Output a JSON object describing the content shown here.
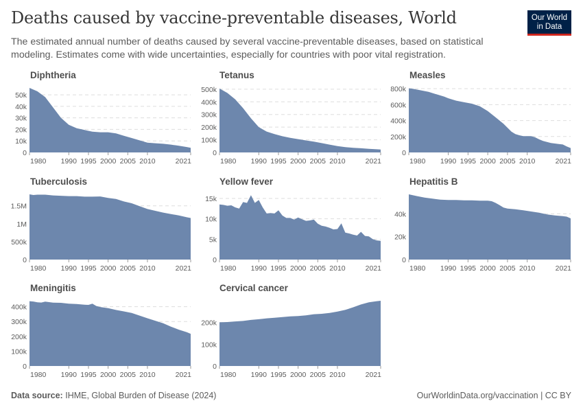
{
  "header": {
    "title": "Deaths caused by vaccine-preventable diseases, World",
    "subtitle": "The estimated annual number of deaths caused by several vaccine-preventable diseases, based on statistical modeling. Estimates come with wide uncertainties, especially for countries with poor vital registration.",
    "logo_line1": "Our World",
    "logo_line2": "in Data"
  },
  "footer": {
    "source_label": "Data source:",
    "source_text": "IHME, Global Burden of Disease (2024)",
    "url_text": "OurWorldinData.org/vaccination | CC BY"
  },
  "colors": {
    "area": "#6d87ad",
    "logo_bg": "#002147",
    "logo_accent": "#ce261e"
  },
  "chart_data": [
    {
      "type": "area",
      "title": "Diphtheria",
      "x_ticks": [
        1980,
        1990,
        1995,
        2000,
        2005,
        2010,
        2021
      ],
      "y_ticks": [
        0,
        10000,
        20000,
        30000,
        40000,
        50000
      ],
      "y_tick_labels": [
        "0",
        "10k",
        "20k",
        "30k",
        "40k",
        "50k"
      ],
      "xlim": [
        1980,
        2021
      ],
      "ylim": [
        0,
        56000
      ],
      "x": [
        1980,
        1982,
        1984,
        1986,
        1988,
        1990,
        1992,
        1994,
        1996,
        1998,
        2000,
        2002,
        2004,
        2006,
        2008,
        2010,
        2012,
        2014,
        2016,
        2018,
        2020,
        2021
      ],
      "values": [
        56000,
        53000,
        48000,
        39000,
        30000,
        24000,
        21000,
        19500,
        18000,
        17500,
        17500,
        16500,
        14500,
        12500,
        10500,
        8500,
        8000,
        7500,
        6800,
        5800,
        4700,
        4000
      ]
    },
    {
      "type": "area",
      "title": "Tetanus",
      "x_ticks": [
        1980,
        1990,
        1995,
        2000,
        2005,
        2010,
        2021
      ],
      "y_ticks": [
        0,
        100000,
        200000,
        300000,
        400000,
        500000
      ],
      "y_tick_labels": [
        "0",
        "100k",
        "200k",
        "300k",
        "400k",
        "500k"
      ],
      "xlim": [
        1980,
        2021
      ],
      "ylim": [
        0,
        510000
      ],
      "x": [
        1980,
        1982,
        1984,
        1986,
        1988,
        1990,
        1992,
        1994,
        1996,
        1998,
        2000,
        2002,
        2004,
        2006,
        2008,
        2010,
        2012,
        2014,
        2016,
        2018,
        2020,
        2021
      ],
      "values": [
        505000,
        470000,
        420000,
        350000,
        270000,
        200000,
        165000,
        145000,
        128000,
        115000,
        105000,
        95000,
        85000,
        74000,
        62000,
        50000,
        42000,
        37000,
        33000,
        29000,
        25000,
        23000
      ]
    },
    {
      "type": "area",
      "title": "Measles",
      "x_ticks": [
        1980,
        1990,
        1995,
        2000,
        2005,
        2010,
        2021
      ],
      "y_ticks": [
        0,
        200000,
        400000,
        600000,
        800000
      ],
      "y_tick_labels": [
        "0",
        "200k",
        "400k",
        "600k",
        "800k"
      ],
      "xlim": [
        1980,
        2021
      ],
      "ylim": [
        0,
        810000
      ],
      "x": [
        1980,
        1981,
        1983,
        1985,
        1987,
        1989,
        1990,
        1992,
        1994,
        1996,
        1998,
        2000,
        2002,
        2004,
        2005,
        2006,
        2007,
        2008,
        2009,
        2010,
        2011,
        2012,
        2013,
        2014,
        2016,
        2018,
        2019,
        2020,
        2021
      ],
      "values": [
        805000,
        800000,
        780000,
        760000,
        730000,
        700000,
        680000,
        650000,
        630000,
        612000,
        580000,
        520000,
        440000,
        360000,
        310000,
        260000,
        230000,
        215000,
        205000,
        205000,
        205000,
        190000,
        165000,
        145000,
        118000,
        105000,
        100000,
        75000,
        55000
      ]
    },
    {
      "type": "area",
      "title": "Tuberculosis",
      "x_ticks": [
        1980,
        1990,
        1995,
        2000,
        2005,
        2010,
        2021
      ],
      "y_ticks": [
        0,
        500000,
        1000000,
        1500000
      ],
      "y_tick_labels": [
        "0",
        "500k",
        "1M",
        "1.5M"
      ],
      "xlim": [
        1980,
        2021
      ],
      "ylim": [
        0,
        1820000
      ],
      "x": [
        1980,
        1981,
        1982,
        1984,
        1986,
        1988,
        1990,
        1992,
        1994,
        1996,
        1998,
        2000,
        2002,
        2004,
        2006,
        2008,
        2010,
        2012,
        2014,
        2016,
        2018,
        2020,
        2021
      ],
      "values": [
        1820000,
        1800000,
        1810000,
        1810000,
        1790000,
        1780000,
        1770000,
        1770000,
        1755000,
        1755000,
        1760000,
        1720000,
        1690000,
        1620000,
        1570000,
        1490000,
        1410000,
        1360000,
        1310000,
        1270000,
        1230000,
        1180000,
        1160000
      ]
    },
    {
      "type": "area",
      "title": "Yellow fever",
      "x_ticks": [
        1980,
        1990,
        1995,
        2000,
        2005,
        2010,
        2021
      ],
      "y_ticks": [
        0,
        5000,
        10000,
        15000
      ],
      "y_tick_labels": [
        "0",
        "5k",
        "10k",
        "15k"
      ],
      "xlim": [
        1980,
        2021
      ],
      "ylim": [
        0,
        16000
      ],
      "x": [
        1980,
        1981,
        1982,
        1983,
        1984,
        1985,
        1986,
        1987,
        1988,
        1989,
        1990,
        1991,
        1992,
        1993,
        1994,
        1995,
        1996,
        1997,
        1998,
        1999,
        2000,
        2001,
        2002,
        2003,
        2004,
        2005,
        2006,
        2007,
        2008,
        2009,
        2010,
        2011,
        2012,
        2013,
        2014,
        2015,
        2016,
        2017,
        2018,
        2019,
        2020,
        2021
      ],
      "values": [
        13500,
        13400,
        13200,
        13300,
        12800,
        12500,
        14100,
        13900,
        15800,
        13900,
        14600,
        12800,
        11300,
        11400,
        11300,
        12100,
        10800,
        10200,
        10200,
        9800,
        10300,
        9900,
        9500,
        9600,
        9800,
        8800,
        8300,
        8100,
        7800,
        7400,
        7500,
        8900,
        6600,
        6400,
        6100,
        5900,
        6800,
        5800,
        5700,
        5000,
        4700,
        4600
      ]
    },
    {
      "type": "area",
      "title": "Hepatitis B",
      "x_ticks": [
        1980,
        1990,
        1995,
        2000,
        2005,
        2010,
        2021
      ],
      "y_ticks": [
        0,
        20000,
        40000
      ],
      "y_tick_labels": [
        "0",
        "20k",
        "40k"
      ],
      "xlim": [
        1980,
        2021
      ],
      "ylim": [
        0,
        57000
      ],
      "x": [
        1980,
        1982,
        1984,
        1986,
        1988,
        1990,
        1992,
        1994,
        1996,
        1998,
        2000,
        2001,
        2002,
        2003,
        2004,
        2005,
        2007,
        2009,
        2011,
        2013,
        2015,
        2017,
        2019,
        2020,
        2021
      ],
      "values": [
        57000,
        55500,
        54200,
        53200,
        52300,
        52000,
        52000,
        51800,
        51700,
        51500,
        51500,
        51000,
        49500,
        47500,
        45500,
        44500,
        44000,
        43000,
        42000,
        41000,
        39500,
        38500,
        38000,
        37500,
        36000
      ]
    },
    {
      "type": "area",
      "title": "Meningitis",
      "x_ticks": [
        1980,
        1990,
        1995,
        2000,
        2005,
        2010,
        2021
      ],
      "y_ticks": [
        0,
        100000,
        200000,
        300000,
        400000
      ],
      "y_tick_labels": [
        "0",
        "100k",
        "200k",
        "300k",
        "400k"
      ],
      "xlim": [
        1980,
        2021
      ],
      "ylim": [
        0,
        440000
      ],
      "x": [
        1980,
        1981,
        1982,
        1983,
        1984,
        1986,
        1988,
        1990,
        1992,
        1994,
        1995,
        1996,
        1997,
        1998,
        2000,
        2002,
        2004,
        2006,
        2008,
        2010,
        2012,
        2014,
        2016,
        2018,
        2020,
        2021
      ],
      "values": [
        437000,
        435000,
        430000,
        428000,
        434000,
        427000,
        426000,
        420000,
        418000,
        413000,
        412000,
        420000,
        405000,
        398000,
        390000,
        378000,
        368000,
        358000,
        340000,
        322000,
        305000,
        288000,
        265000,
        245000,
        228000,
        217000
      ]
    },
    {
      "type": "area",
      "title": "Cervical cancer",
      "x_ticks": [
        1980,
        1990,
        1995,
        2000,
        2005,
        2010,
        2021
      ],
      "y_ticks": [
        0,
        100000,
        200000
      ],
      "y_tick_labels": [
        "0",
        "100k",
        "200k"
      ],
      "xlim": [
        1980,
        2021
      ],
      "ylim": [
        0,
        300000
      ],
      "x": [
        1980,
        1982,
        1984,
        1986,
        1988,
        1990,
        1992,
        1994,
        1996,
        1998,
        2000,
        2002,
        2004,
        2006,
        2008,
        2010,
        2012,
        2014,
        2016,
        2018,
        2020,
        2021
      ],
      "values": [
        201000,
        202000,
        205000,
        207000,
        212000,
        215000,
        219000,
        222000,
        225000,
        228000,
        230000,
        233000,
        238000,
        240000,
        244000,
        250000,
        258000,
        270000,
        283000,
        293000,
        298000,
        300000
      ]
    }
  ]
}
